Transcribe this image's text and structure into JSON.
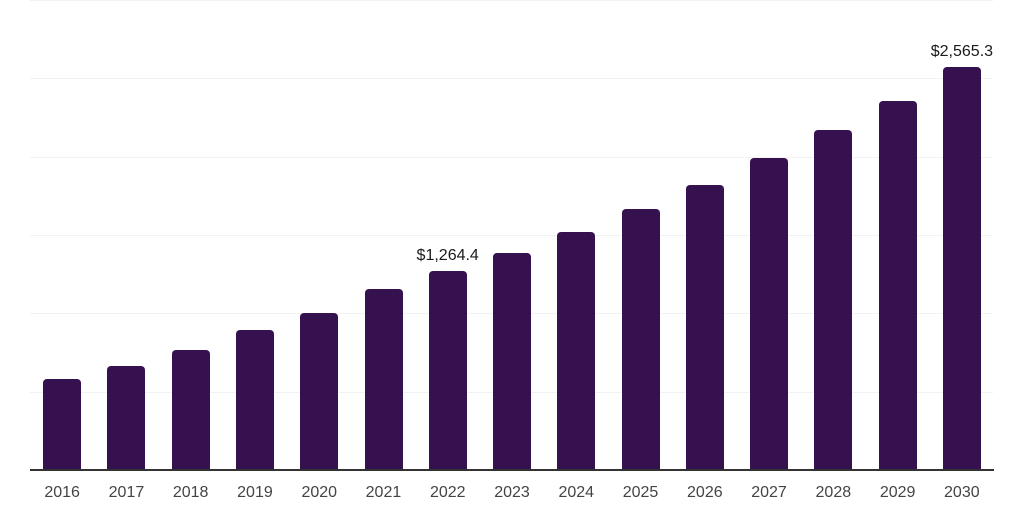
{
  "chart_data": {
    "type": "bar",
    "categories": [
      "2016",
      "2017",
      "2018",
      "2019",
      "2020",
      "2021",
      "2022",
      "2023",
      "2024",
      "2025",
      "2026",
      "2027",
      "2028",
      "2029",
      "2030"
    ],
    "values": [
      575,
      656,
      760,
      889,
      994,
      1147,
      1264.4,
      1381,
      1513,
      1661,
      1815,
      1983,
      2162,
      2350,
      2565.3
    ],
    "bar_labels": [
      "",
      "",
      "",
      "",
      "",
      "",
      "$1,264.4",
      "",
      "",
      "",
      "",
      "",
      "",
      "",
      "$2,565.3"
    ],
    "ylim": [
      0,
      3000
    ],
    "gridline_step": 500,
    "grid": true,
    "legend": "none",
    "xlabel": "",
    "ylabel": "",
    "colors": {
      "bar": "#361150",
      "axis_line": "#333333",
      "gridline": "#f2f2f2",
      "tick_label": "#444444",
      "value_label": "#1a1a1a",
      "background": "#ffffff"
    }
  }
}
